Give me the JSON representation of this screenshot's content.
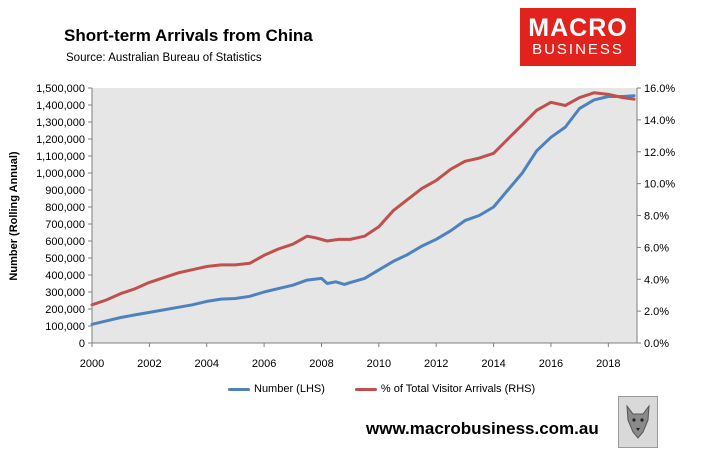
{
  "header": {
    "title": "Short-term Arrivals from China",
    "subtitle": "Source: Australian Bureau of Statistics"
  },
  "logo": {
    "line1": "MACRO",
    "line2": "BUSINESS"
  },
  "footer": {
    "url": "www.macrobusiness.com.au"
  },
  "colors": {
    "lhs_series": "#4f81bd",
    "rhs_series": "#c0504d",
    "plot_bg": "#e6e6e6",
    "logo_bg": "#e2221d"
  },
  "chart_data": {
    "type": "line",
    "ylabel": "Number (Rolling Annual)",
    "xlim": [
      2000,
      2019
    ],
    "ylim_left": [
      0,
      1500000
    ],
    "ylim_right": [
      0,
      16
    ],
    "x_ticks": [
      "2000",
      "2002",
      "2004",
      "2006",
      "2008",
      "2010",
      "2012",
      "2014",
      "2016",
      "2018"
    ],
    "y_ticks_left": [
      "0",
      "100,000",
      "200,000",
      "300,000",
      "400,000",
      "500,000",
      "600,000",
      "700,000",
      "800,000",
      "900,000",
      "1,000,000",
      "1,100,000",
      "1,200,000",
      "1,300,000",
      "1,400,000",
      "1,500,000"
    ],
    "y_ticks_right": [
      "0.0%",
      "2.0%",
      "4.0%",
      "6.0%",
      "8.0%",
      "10.0%",
      "12.0%",
      "14.0%",
      "16.0%"
    ],
    "grid": false,
    "legend_position": "bottom",
    "series": [
      {
        "name": "Number (LHS)",
        "axis": "left",
        "color": "#4f81bd",
        "x": [
          2000,
          2000.5,
          2001,
          2001.5,
          2002,
          2002.5,
          2003,
          2003.5,
          2004,
          2004.5,
          2005,
          2005.5,
          2006,
          2006.5,
          2007,
          2007.5,
          2008,
          2008.2,
          2008.5,
          2008.8,
          2009,
          2009.5,
          2010,
          2010.5,
          2011,
          2011.5,
          2012,
          2012.5,
          2013,
          2013.5,
          2014,
          2014.5,
          2015,
          2015.5,
          2016,
          2016.5,
          2017,
          2017.5,
          2018,
          2018.5,
          2018.9
        ],
        "values": [
          110000,
          130000,
          150000,
          165000,
          180000,
          195000,
          210000,
          225000,
          245000,
          258000,
          262000,
          275000,
          300000,
          320000,
          340000,
          370000,
          380000,
          350000,
          360000,
          345000,
          355000,
          380000,
          430000,
          480000,
          520000,
          570000,
          610000,
          660000,
          720000,
          750000,
          800000,
          900000,
          1000000,
          1130000,
          1210000,
          1270000,
          1380000,
          1430000,
          1450000,
          1450000,
          1455000
        ]
      },
      {
        "name": "% of Total Visitor Arrivals (RHS)",
        "axis": "right",
        "color": "#c0504d",
        "x": [
          2000,
          2000.5,
          2001,
          2001.5,
          2002,
          2002.5,
          2003,
          2003.5,
          2004,
          2004.5,
          2005,
          2005.5,
          2006,
          2006.5,
          2007,
          2007.5,
          2007.8,
          2008.2,
          2008.6,
          2009,
          2009.5,
          2010,
          2010.5,
          2011,
          2011.5,
          2012,
          2012.5,
          2013,
          2013.5,
          2014,
          2014.5,
          2015,
          2015.5,
          2016,
          2016.5,
          2017,
          2017.5,
          2018,
          2018.5,
          2018.9
        ],
        "values": [
          2.4,
          2.7,
          3.1,
          3.4,
          3.8,
          4.1,
          4.4,
          4.6,
          4.8,
          4.9,
          4.9,
          5.0,
          5.5,
          5.9,
          6.2,
          6.7,
          6.6,
          6.4,
          6.5,
          6.5,
          6.7,
          7.3,
          8.3,
          9.0,
          9.7,
          10.2,
          10.9,
          11.4,
          11.6,
          11.9,
          12.8,
          13.7,
          14.6,
          15.1,
          14.9,
          15.4,
          15.7,
          15.6,
          15.4,
          15.3
        ]
      }
    ]
  }
}
